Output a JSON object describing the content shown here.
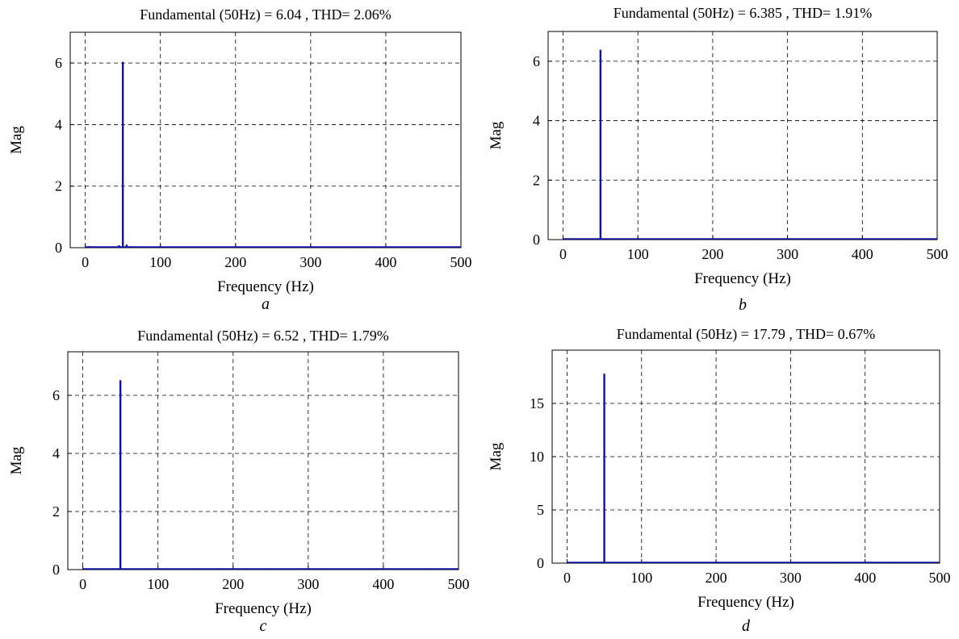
{
  "colors": {
    "line": "#1010b8",
    "grid": "#000000",
    "background": "#ffffff"
  },
  "chart_data": [
    {
      "type": "bar",
      "panel": "a",
      "title": "Fundamental (50Hz) = 6.04 , THD= 2.06%",
      "xlabel": "Frequency (Hz)",
      "ylabel": "Mag",
      "subcaption": "a",
      "xlim": [
        -20,
        500
      ],
      "ylim": [
        0,
        7
      ],
      "xticks": [
        0,
        100,
        200,
        300,
        400,
        500
      ],
      "yticks": [
        0,
        2,
        4,
        6
      ],
      "grid": true,
      "x": [
        5,
        10,
        45,
        50,
        55,
        60,
        150,
        250,
        350,
        450
      ],
      "values": [
        0.05,
        0.04,
        0.08,
        6.04,
        0.1,
        0.05,
        0.03,
        0.02,
        0.02,
        0.02
      ]
    },
    {
      "type": "bar",
      "panel": "b",
      "title": "Fundamental (50Hz) = 6.385 , THD= 1.91%",
      "xlabel": "Frequency (Hz)",
      "ylabel": "Mag",
      "subcaption": "b",
      "xlim": [
        -20,
        500
      ],
      "ylim": [
        0,
        7
      ],
      "xticks": [
        0,
        100,
        200,
        300,
        400,
        500
      ],
      "yticks": [
        0,
        2,
        4,
        6
      ],
      "grid": true,
      "x": [
        10,
        50,
        150,
        250,
        350,
        450
      ],
      "values": [
        0.03,
        6.385,
        0.03,
        0.02,
        0.02,
        0.02
      ]
    },
    {
      "type": "bar",
      "panel": "c",
      "title": "Fundamental (50Hz) = 6.52 , THD= 1.79%",
      "xlabel": "Frequency (Hz)",
      "ylabel": "Mag",
      "subcaption": "c",
      "xlim": [
        -20,
        500
      ],
      "ylim": [
        0,
        7.5
      ],
      "xticks": [
        0,
        100,
        200,
        300,
        400,
        500
      ],
      "yticks": [
        0,
        2,
        4,
        6
      ],
      "grid": true,
      "x": [
        10,
        50,
        150,
        250,
        350,
        450
      ],
      "values": [
        0.03,
        6.52,
        0.02,
        0.02,
        0.02,
        0.02
      ]
    },
    {
      "type": "bar",
      "panel": "d",
      "title": "Fundamental (50Hz) = 17.79 , THD= 0.67%",
      "xlabel": "Frequency (Hz)",
      "ylabel": "Mag",
      "subcaption": "d",
      "xlim": [
        -20,
        500
      ],
      "ylim": [
        0,
        20
      ],
      "xticks": [
        0,
        100,
        200,
        300,
        400,
        500
      ],
      "yticks": [
        0,
        5,
        10,
        15
      ],
      "grid": true,
      "x": [
        10,
        50,
        150,
        250,
        350,
        450
      ],
      "values": [
        0.05,
        17.79,
        0.04,
        0.03,
        0.03,
        0.03
      ]
    }
  ]
}
